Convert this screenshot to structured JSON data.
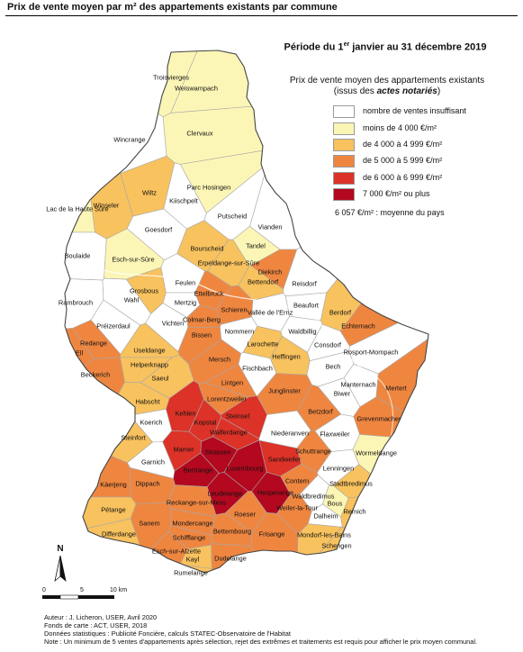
{
  "title": "Prix de vente moyen par m² des appartements existants par commune",
  "period": {
    "before": "Période du 1",
    "sup": "er",
    "after": " janvier au 31 décembre 2019"
  },
  "legend": {
    "title_line1": "Prix de vente moyen des appartements existants",
    "title_line2_prefix": "(issus des ",
    "title_line2_bold": "actes notariés",
    "title_line2_suffix": ")",
    "classes": [
      {
        "label": "nombre de ventes insuffisant",
        "color": "#ffffff"
      },
      {
        "label": "moins de 4 000 €/m²",
        "color": "#fcf6b6"
      },
      {
        "label": "de 4 000 à 4 999 €/m²",
        "color": "#f8c25e"
      },
      {
        "label": "de 5 000 à 5 999 €/m²",
        "color": "#ef8640"
      },
      {
        "label": "de 6 000 à 6 999 €/m²",
        "color": "#dc3227"
      },
      {
        "label": "7 000 €/m² ou plus",
        "color": "#b3081f"
      }
    ],
    "average": "6 057 €/m² : moyenne du pays"
  },
  "north_label": "N",
  "scale": {
    "zero": "0",
    "five": "5",
    "ten": "10 km"
  },
  "footer": [
    "Auteur : J. Licheron, USER, Avril 2020",
    "Fonds de carte : ACT, USER, 2018",
    "Données statistiques :  Publicité Foncière, calculs STATEC-Observatoire de l'Habitat",
    "Note : Un minimum de 5 ventes d'appartements après sélection, rejet des extrêmes et traitements est requis pour afficher le prix moyen communal."
  ],
  "communes": [
    {
      "name": "Troisvierges",
      "cls": 1
    },
    {
      "name": "Weiswampach",
      "cls": 1
    },
    {
      "name": "Clervaux",
      "cls": 1
    },
    {
      "name": "Wincrange",
      "cls": 0
    },
    {
      "name": "Parc Hosingen",
      "cls": 1
    },
    {
      "name": "Wiltz",
      "cls": 2
    },
    {
      "name": "Kiischpelt",
      "cls": 0
    },
    {
      "name": "Winseler",
      "cls": 2
    },
    {
      "name": "Goesdorf",
      "cls": 0
    },
    {
      "name": "Putscheid",
      "cls": 0
    },
    {
      "name": "Vianden",
      "cls": 0
    },
    {
      "name": "Lac de la Haute Sûre",
      "cls": 1
    },
    {
      "name": "Tandel",
      "cls": 1
    },
    {
      "name": "Boulaide",
      "cls": 0
    },
    {
      "name": "Esch-sur-Sûre",
      "cls": 1
    },
    {
      "name": "Bourscheid",
      "cls": 2
    },
    {
      "name": "Erpeldange-sur-Sûre",
      "cls": 2
    },
    {
      "name": "Diekirch",
      "cls": 3
    },
    {
      "name": "Bettendorf",
      "cls": 2
    },
    {
      "name": "Reisdorf",
      "cls": 0
    },
    {
      "name": "Feulen",
      "cls": 0
    },
    {
      "name": "Ettelbruck",
      "cls": 3
    },
    {
      "name": "Grosbous",
      "cls": 2
    },
    {
      "name": "Mertzig",
      "cls": 0
    },
    {
      "name": "Wahl",
      "cls": 0
    },
    {
      "name": "Rambrouch",
      "cls": 0
    },
    {
      "name": "Schieren",
      "cls": 3
    },
    {
      "name": "Beaufort",
      "cls": 0
    },
    {
      "name": "Berdorf",
      "cls": 2
    },
    {
      "name": "Vallée de l'Ernz",
      "cls": 0
    },
    {
      "name": "Préizerdaul",
      "cls": 0
    },
    {
      "name": "Vichten",
      "cls": 0
    },
    {
      "name": "Colmar-Berg",
      "cls": 3
    },
    {
      "name": "Nommern",
      "cls": 0
    },
    {
      "name": "Waldbillig",
      "cls": 0
    },
    {
      "name": "Echternach",
      "cls": 3
    },
    {
      "name": "Redange",
      "cls": 3
    },
    {
      "name": "Bissen",
      "cls": 3
    },
    {
      "name": "Ell",
      "cls": 3
    },
    {
      "name": "Useldange",
      "cls": 2
    },
    {
      "name": "Larochette",
      "cls": 2
    },
    {
      "name": "Consdorf",
      "cls": 0
    },
    {
      "name": "Rosport-Mompach",
      "cls": 0
    },
    {
      "name": "Heffingen",
      "cls": 2
    },
    {
      "name": "Helperknapp",
      "cls": 2
    },
    {
      "name": "Mersch",
      "cls": 3
    },
    {
      "name": "Fischbach",
      "cls": 0
    },
    {
      "name": "Bech",
      "cls": 0
    },
    {
      "name": "Beckerich",
      "cls": 3
    },
    {
      "name": "Saeul",
      "cls": 2
    },
    {
      "name": "Lintgen",
      "cls": 3
    },
    {
      "name": "Junglinster",
      "cls": 3
    },
    {
      "name": "Manternach",
      "cls": 0
    },
    {
      "name": "Mertert",
      "cls": 3
    },
    {
      "name": "Biwer",
      "cls": 0
    },
    {
      "name": "Habscht",
      "cls": 2
    },
    {
      "name": "Lorentzweiler",
      "cls": 3
    },
    {
      "name": "Betzdorf",
      "cls": 3
    },
    {
      "name": "Kehlen",
      "cls": 4
    },
    {
      "name": "Steinsel",
      "cls": 4
    },
    {
      "name": "Grevenmacher",
      "cls": 3
    },
    {
      "name": "Koerich",
      "cls": 0
    },
    {
      "name": "Kopstal",
      "cls": 4
    },
    {
      "name": "Walferdange",
      "cls": 4
    },
    {
      "name": "Niederanven",
      "cls": 0
    },
    {
      "name": "Flaxweiler",
      "cls": 0
    },
    {
      "name": "Steinfort",
      "cls": 2
    },
    {
      "name": "Mamer",
      "cls": 4
    },
    {
      "name": "Strassen",
      "cls": 5
    },
    {
      "name": "Schuttrange",
      "cls": 3
    },
    {
      "name": "Wormeldange",
      "cls": 1
    },
    {
      "name": "Garnich",
      "cls": 0
    },
    {
      "name": "Sandweiler",
      "cls": 4
    },
    {
      "name": "Luxembourg",
      "cls": 5
    },
    {
      "name": "Bertrange",
      "cls": 5
    },
    {
      "name": "Lenningen",
      "cls": 0
    },
    {
      "name": "Käerjeng",
      "cls": 3
    },
    {
      "name": "Dippach",
      "cls": 3
    },
    {
      "name": "Contern",
      "cls": 3
    },
    {
      "name": "Stadtbredimus",
      "cls": 2
    },
    {
      "name": "Leudelange",
      "cls": 5
    },
    {
      "name": "Hesperange",
      "cls": 5
    },
    {
      "name": "Waldbredimus",
      "cls": 0
    },
    {
      "name": "Reckange-sur-Mess",
      "cls": 3
    },
    {
      "name": "Bous",
      "cls": 1
    },
    {
      "name": "Pétange",
      "cls": 2
    },
    {
      "name": "Roeser",
      "cls": 3
    },
    {
      "name": "Weiler-la-Tour",
      "cls": 3
    },
    {
      "name": "Dalheim",
      "cls": 0
    },
    {
      "name": "Remich",
      "cls": 2
    },
    {
      "name": "Sanem",
      "cls": 3
    },
    {
      "name": "Mondercange",
      "cls": 3
    },
    {
      "name": "Differdange",
      "cls": 2
    },
    {
      "name": "Bettembourg",
      "cls": 3
    },
    {
      "name": "Frisange",
      "cls": 3
    },
    {
      "name": "Mondorf-les-Bains",
      "cls": 2
    },
    {
      "name": "Schifflange",
      "cls": 3
    },
    {
      "name": "Schengen",
      "cls": 2
    },
    {
      "name": "Esch-sur-Alzette",
      "cls": 3
    },
    {
      "name": "Kayl",
      "cls": 2
    },
    {
      "name": "Dudelange",
      "cls": 3
    },
    {
      "name": "Rumelange",
      "cls": 2
    }
  ]
}
